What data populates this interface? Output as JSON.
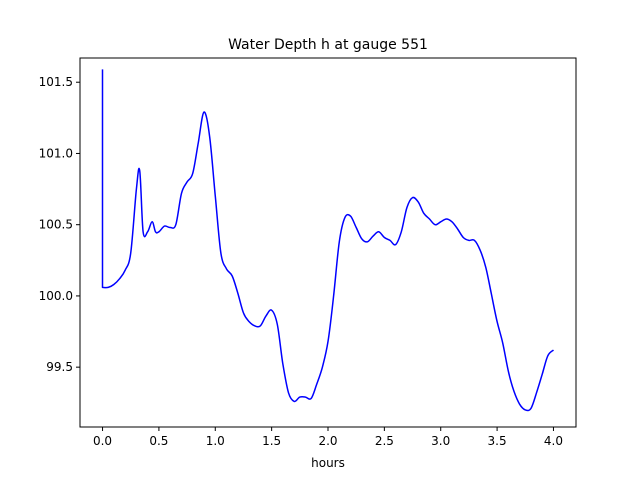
{
  "chart_data": {
    "type": "line",
    "title": "Water Depth h at gauge 551",
    "xlabel": "hours",
    "ylabel": "",
    "xlim": [
      -0.2,
      4.2
    ],
    "ylim": [
      99.08,
      101.67
    ],
    "xticks": [
      0.0,
      0.5,
      1.0,
      1.5,
      2.0,
      2.5,
      3.0,
      3.5,
      4.0
    ],
    "xtick_labels": [
      "0.0",
      "0.5",
      "1.0",
      "1.5",
      "2.0",
      "2.5",
      "3.0",
      "3.5",
      "4.0"
    ],
    "yticks": [
      99.5,
      100.0,
      100.5,
      101.0,
      101.5
    ],
    "ytick_labels": [
      "99.5",
      "100.0",
      "100.5",
      "101.0",
      "101.5"
    ],
    "grid": false,
    "series": [
      {
        "color": "#0000ff",
        "x": [
          0.0,
          0.0,
          0.05,
          0.1,
          0.15,
          0.2,
          0.25,
          0.3,
          0.33,
          0.36,
          0.4,
          0.44,
          0.47,
          0.5,
          0.55,
          0.6,
          0.65,
          0.7,
          0.75,
          0.8,
          0.85,
          0.9,
          0.95,
          1.0,
          1.05,
          1.1,
          1.15,
          1.2,
          1.25,
          1.3,
          1.35,
          1.4,
          1.45,
          1.5,
          1.55,
          1.6,
          1.65,
          1.7,
          1.75,
          1.8,
          1.85,
          1.9,
          1.95,
          2.0,
          2.05,
          2.1,
          2.15,
          2.2,
          2.25,
          2.3,
          2.35,
          2.4,
          2.45,
          2.5,
          2.55,
          2.6,
          2.65,
          2.7,
          2.75,
          2.8,
          2.85,
          2.9,
          2.95,
          3.0,
          3.05,
          3.1,
          3.15,
          3.2,
          3.25,
          3.3,
          3.35,
          3.4,
          3.45,
          3.5,
          3.55,
          3.6,
          3.65,
          3.7,
          3.75,
          3.8,
          3.85,
          3.9,
          3.95,
          4.0
        ],
        "y": [
          101.59,
          100.06,
          100.06,
          100.08,
          100.12,
          100.18,
          100.3,
          100.75,
          100.88,
          100.45,
          100.45,
          100.52,
          100.45,
          100.45,
          100.49,
          100.48,
          100.5,
          100.72,
          100.8,
          100.86,
          101.08,
          101.29,
          101.12,
          100.7,
          100.3,
          100.19,
          100.14,
          100.02,
          99.88,
          99.82,
          99.79,
          99.79,
          99.86,
          99.9,
          99.8,
          99.52,
          99.32,
          99.26,
          99.29,
          99.29,
          99.28,
          99.38,
          99.5,
          99.68,
          100.0,
          100.38,
          100.55,
          100.56,
          100.48,
          100.4,
          100.38,
          100.42,
          100.45,
          100.41,
          100.39,
          100.36,
          100.45,
          100.62,
          100.69,
          100.66,
          100.58,
          100.54,
          100.5,
          100.52,
          100.54,
          100.52,
          100.47,
          100.41,
          100.39,
          100.39,
          100.32,
          100.2,
          100.01,
          99.82,
          99.67,
          99.47,
          99.33,
          99.24,
          99.2,
          99.21,
          99.32,
          99.45,
          99.58,
          99.62
        ]
      }
    ]
  }
}
